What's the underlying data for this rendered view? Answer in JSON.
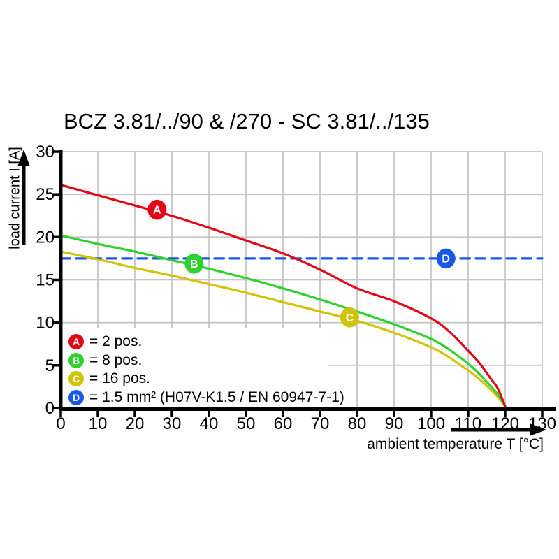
{
  "title": "BCZ 3.81/../90 & /270 - SC 3.81/../135",
  "chart_data": {
    "type": "line",
    "title": "BCZ 3.81/../90 & /270 - SC 3.81/../135",
    "xlabel": "ambient temperature T [°C]",
    "ylabel": "load current I [A]",
    "xlim": [
      0,
      130
    ],
    "ylim": [
      0,
      30
    ],
    "x_ticks": [
      0,
      10,
      20,
      30,
      40,
      50,
      60,
      70,
      80,
      90,
      100,
      110,
      120,
      130
    ],
    "y_ticks": [
      0,
      5,
      10,
      15,
      20,
      25,
      30
    ],
    "grid": true,
    "grid_color": "#c6c6c6",
    "axis_color": "#000000",
    "background_color": "#ffffff",
    "legend_position": "inside-bottom-left",
    "series": [
      {
        "id": "A",
        "name": "2 pos.",
        "legend_label": "= 2 pos.",
        "color": "#e30615",
        "line_style": "solid",
        "marker": {
          "x": 26,
          "y": 23.2
        },
        "points": [
          [
            0,
            26.1
          ],
          [
            10,
            24.9
          ],
          [
            20,
            23.7
          ],
          [
            30,
            22.5
          ],
          [
            40,
            21.1
          ],
          [
            50,
            19.6
          ],
          [
            60,
            18.1
          ],
          [
            70,
            16.2
          ],
          [
            80,
            14.0
          ],
          [
            90,
            12.5
          ],
          [
            100,
            10.5
          ],
          [
            105,
            8.9
          ],
          [
            110,
            6.7
          ],
          [
            113,
            5.3
          ],
          [
            116,
            3.5
          ],
          [
            118,
            2.3
          ],
          [
            120,
            0.2
          ]
        ]
      },
      {
        "id": "B",
        "name": "8 pos.",
        "legend_label": "= 8 pos.",
        "color": "#2fd12f",
        "line_style": "solid",
        "marker": {
          "x": 36,
          "y": 16.9
        },
        "points": [
          [
            0,
            20.2
          ],
          [
            10,
            19.2
          ],
          [
            20,
            18.3
          ],
          [
            30,
            17.3
          ],
          [
            40,
            16.3
          ],
          [
            50,
            15.2
          ],
          [
            60,
            14.0
          ],
          [
            70,
            12.7
          ],
          [
            80,
            11.3
          ],
          [
            90,
            9.8
          ],
          [
            100,
            8.1
          ],
          [
            105,
            6.8
          ],
          [
            110,
            5.2
          ],
          [
            113,
            4.0
          ],
          [
            116,
            2.6
          ],
          [
            118,
            1.6
          ],
          [
            120,
            0.2
          ]
        ]
      },
      {
        "id": "C",
        "name": "16 pos.",
        "legend_label": "= 16 pos.",
        "color": "#d2c405",
        "line_style": "solid",
        "marker": {
          "x": 78,
          "y": 10.6
        },
        "points": [
          [
            0,
            18.3
          ],
          [
            10,
            17.4
          ],
          [
            20,
            16.4
          ],
          [
            30,
            15.5
          ],
          [
            40,
            14.5
          ],
          [
            50,
            13.5
          ],
          [
            60,
            12.4
          ],
          [
            70,
            11.3
          ],
          [
            80,
            10.2
          ],
          [
            90,
            8.8
          ],
          [
            100,
            7.1
          ],
          [
            105,
            5.9
          ],
          [
            110,
            4.4
          ],
          [
            113,
            3.4
          ],
          [
            116,
            2.2
          ],
          [
            118,
            1.3
          ],
          [
            120,
            0.2
          ]
        ]
      },
      {
        "id": "D",
        "name": "1.5 mm² (H07V-K1.5 / EN 60947-7-1)",
        "legend_label": "= 1.5 mm² (H07V-K1.5 / EN 60947-7-1)",
        "color": "#1758e8",
        "line_style": "dashed",
        "marker": {
          "x": 104,
          "y": 17.5
        },
        "points": [
          [
            0,
            17.5
          ],
          [
            130,
            17.5
          ]
        ]
      }
    ]
  }
}
